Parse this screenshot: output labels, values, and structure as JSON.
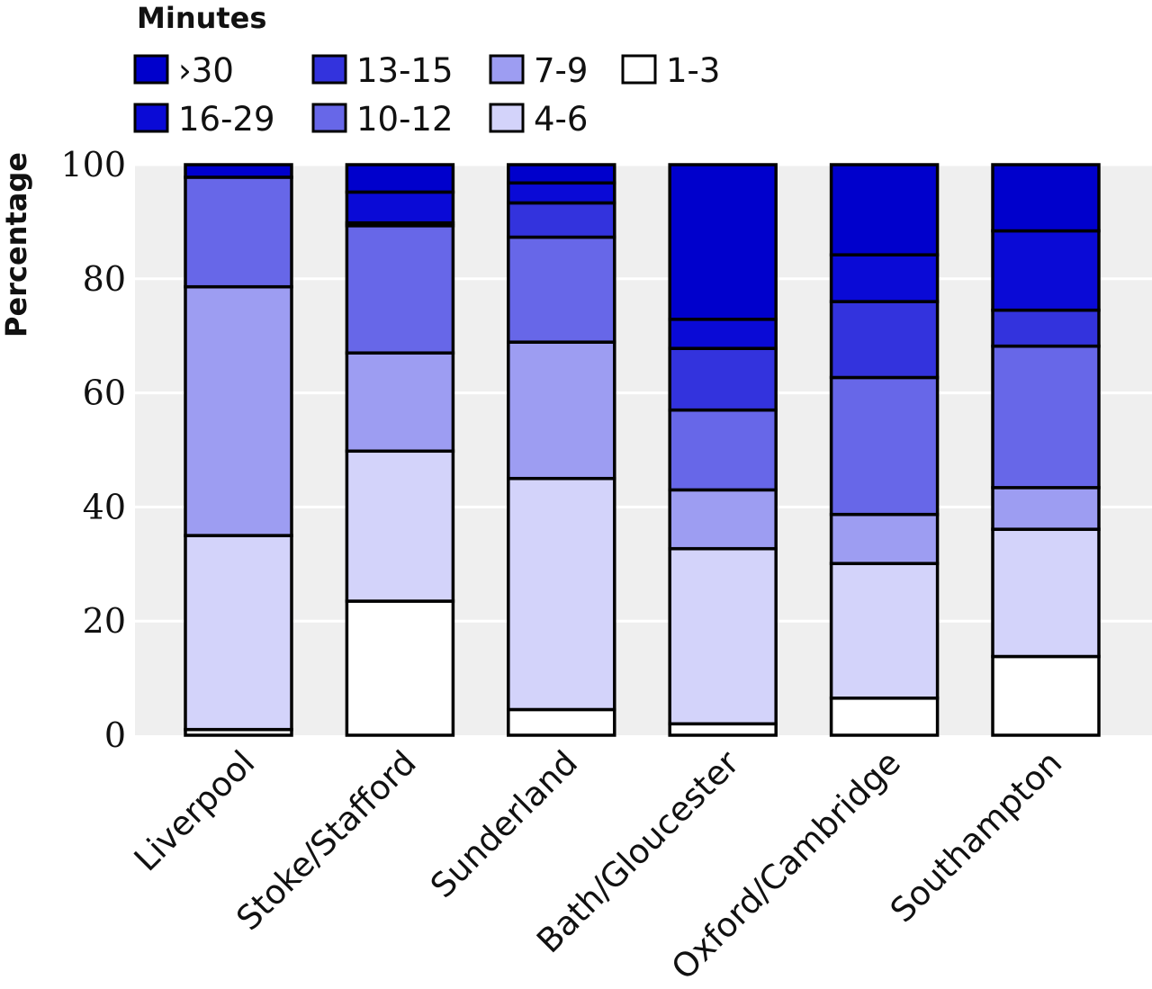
{
  "chart_data": {
    "type": "bar",
    "stacked": true,
    "legend_title": "Minutes",
    "legend_placement": "top-left",
    "ylabel": "Percentage",
    "xlabel": "",
    "ylim": [
      0,
      100
    ],
    "yticks": [
      "0",
      "20",
      "40",
      "60",
      "80",
      "100"
    ],
    "grid": true,
    "categories": [
      "Liverpool",
      "Stoke/Stafford",
      "Sunderland",
      "Bath/Gloucester",
      "Oxford/Cambridge",
      "Southampton"
    ],
    "series": [
      {
        "name": "1-3",
        "color": "#ffffff",
        "values": [
          1,
          23.5,
          4.5,
          2,
          6.5,
          13.8
        ]
      },
      {
        "name": "4-6",
        "color": "#d3d3fa",
        "values": [
          34,
          26.3,
          40.5,
          30.7,
          23.6,
          22.3
        ]
      },
      {
        "name": "7-9",
        "color": "#9d9df2",
        "values": [
          43.6,
          17.2,
          23.9,
          10.3,
          8.6,
          7.3
        ]
      },
      {
        "name": "10-12",
        "color": "#6767e8",
        "values": [
          19.2,
          22.3,
          18.4,
          14,
          24,
          24.8
        ]
      },
      {
        "name": "13-15",
        "color": "#3333dd",
        "values": [
          0,
          0.5,
          6,
          10.8,
          13.3,
          6.3
        ]
      },
      {
        "name": "16-29",
        "color": "#0a0ad6",
        "values": [
          0,
          5.4,
          3.5,
          5.1,
          8.2,
          13.9
        ]
      },
      {
        "name": ">30",
        "color": "#0000cc",
        "values": [
          2.2,
          4.8,
          3.2,
          27.1,
          15.8,
          11.6
        ]
      }
    ],
    "legend_order": [
      ">30",
      "13-15",
      "7-9",
      "1-3",
      "16-29",
      "10-12",
      "4-6"
    ],
    "legend_display": {
      ">30": "›30"
    }
  }
}
